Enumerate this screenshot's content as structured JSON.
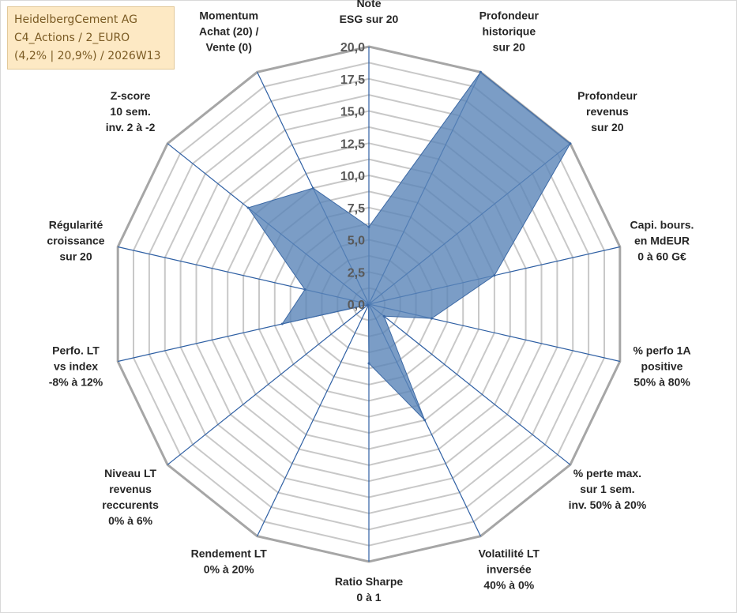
{
  "title_box": {
    "line1": "HeidelbergCement AG",
    "line2": "C4_Actions / 2_EURO",
    "line3": "(4,2% | 20,9%) / 2026W13"
  },
  "colors": {
    "fill": "#5a84b8",
    "stroke": "#3c69a5",
    "axis": "#2e5fa3",
    "grid": "#c8c8c8",
    "outer_ring": "#a6a6a6"
  },
  "chart_data": {
    "type": "radar",
    "title": "",
    "range": [
      0,
      20
    ],
    "ticks": [
      "0,0",
      "2,5",
      "5,0",
      "7,5",
      "10,0",
      "12,5",
      "15,0",
      "17,5",
      "20,0"
    ],
    "tick_values": [
      0,
      2.5,
      5,
      7.5,
      10,
      12.5,
      15,
      17.5,
      20
    ],
    "axes": [
      [
        "Note",
        "ESG sur 20"
      ],
      [
        "Profondeur",
        "historique",
        "sur 20"
      ],
      [
        "Profondeur",
        "revenus",
        "sur 20"
      ],
      [
        "Capi. bours.",
        "en MdEUR",
        "0 à 60 G€"
      ],
      [
        "% perfo 1A",
        "positive",
        "50% à 80%"
      ],
      [
        "% perte max.",
        "sur 1 sem.",
        "inv. 50% à 20%"
      ],
      [
        "Volatilité LT",
        "inversée",
        "40% à 0%"
      ],
      [
        "Ratio Sharpe",
        "0 à 1"
      ],
      [
        "Rendement LT",
        "0% à 20%"
      ],
      [
        "Niveau LT",
        "revenus",
        "reccurents",
        "0% à 6%"
      ],
      [
        "Perfo. LT",
        "vs index",
        "-8% à 12%"
      ],
      [
        "Régularité",
        "croissance",
        "sur 20"
      ],
      [
        "Z-score",
        "10 sem.",
        "inv. 2 à -2"
      ],
      [
        "Momentum",
        "Achat (20) /",
        "Vente (0)"
      ]
    ],
    "series": [
      {
        "name": "HeidelbergCement AG",
        "values": [
          6.0,
          20.0,
          20.0,
          10.0,
          5.0,
          1.5,
          10.0,
          4.6,
          0.1,
          0.1,
          6.9,
          5.1,
          12.0,
          10.0
        ]
      }
    ]
  }
}
